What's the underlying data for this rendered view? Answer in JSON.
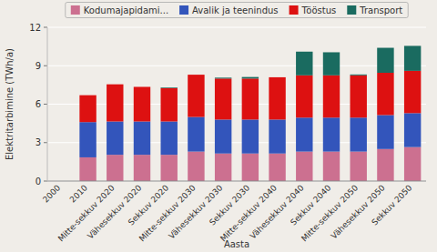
{
  "chart_data": {
    "type": "bar",
    "stacked": true,
    "categories": [
      "2000",
      "2010",
      "Mitte-sekkuv 2020",
      "Vähesekkuv 2020",
      "Sekkuv 2020",
      "Mitte-sekkuv 2030",
      "Vähesekkuv 2030",
      "Sekkuv 2030",
      "Mitte-sekkuv 2040",
      "Vähesekkuv 2040",
      "Sekkuv 2040",
      "Mitte-sekkuv 2050",
      "Vähesekkuv 2050",
      "Sekkuv 2050"
    ],
    "series": [
      {
        "name": "Kodumajapidami...",
        "color": "#cc7090",
        "values": [
          0.0,
          1.85,
          2.05,
          2.05,
          2.05,
          2.3,
          2.15,
          2.15,
          2.15,
          2.3,
          2.3,
          2.3,
          2.5,
          2.65
        ]
      },
      {
        "name": "Avalik ja teenindus",
        "color": "#3355bb",
        "values": [
          0.0,
          2.75,
          2.6,
          2.6,
          2.6,
          2.7,
          2.65,
          2.65,
          2.65,
          2.65,
          2.65,
          2.65,
          2.65,
          2.65
        ]
      },
      {
        "name": "Tööstus",
        "color": "#dd1111",
        "values": [
          0.0,
          2.1,
          2.9,
          2.7,
          2.6,
          3.3,
          3.2,
          3.2,
          3.3,
          3.3,
          3.3,
          3.3,
          3.3,
          3.3
        ]
      },
      {
        "name": "Transport",
        "color": "#1a6b60",
        "values": [
          0.0,
          0.0,
          0.0,
          0.0,
          0.05,
          0.0,
          0.07,
          0.12,
          0.0,
          1.85,
          1.8,
          0.07,
          1.95,
          1.95
        ]
      }
    ],
    "ylabel": "Elektritarbimine (TWh/a)",
    "xlabel": "Aasta",
    "ylim": [
      0,
      12
    ],
    "yticks": [
      0,
      3,
      6,
      9,
      12
    ],
    "grid": true,
    "legend": "top"
  }
}
